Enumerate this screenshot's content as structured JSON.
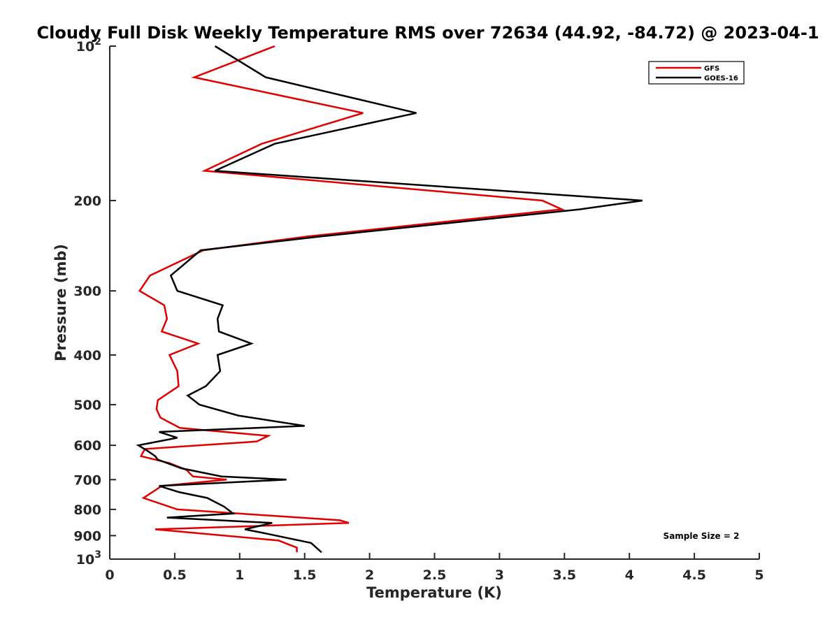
{
  "chart_data": {
    "type": "line",
    "title": "Cloudy Full Disk Weekly Temperature RMS over 72634 (44.92, -84.72) @ 2023-04-1",
    "xlabel": "Temperature (K)",
    "ylabel": "Pressure (mb)",
    "xlim": [
      0,
      5
    ],
    "ylim": [
      1000,
      100
    ],
    "yscale": "log",
    "y_reversed": true,
    "grid": false,
    "legend_position": "top-right",
    "x_ticks": [
      0,
      0.5,
      1,
      1.5,
      2,
      2.5,
      3,
      3.5,
      4,
      4.5,
      5
    ],
    "x_tick_labels": [
      "0",
      "0.5",
      "1",
      "1.5",
      "2",
      "2.5",
      "3",
      "3.5",
      "4",
      "4.5",
      "5"
    ],
    "y_ticks": [
      100,
      200,
      300,
      400,
      500,
      600,
      700,
      800,
      900,
      1000
    ],
    "y_tick_labels": [
      {
        "base": "10",
        "exp": "2"
      },
      {
        "base": "200",
        "exp": ""
      },
      {
        "base": "300",
        "exp": ""
      },
      {
        "base": "400",
        "exp": ""
      },
      {
        "base": "500",
        "exp": ""
      },
      {
        "base": "600",
        "exp": ""
      },
      {
        "base": "700",
        "exp": ""
      },
      {
        "base": "800",
        "exp": ""
      },
      {
        "base": "900",
        "exp": ""
      },
      {
        "base": "10",
        "exp": "3"
      }
    ],
    "annotation": "Sample Size = 2",
    "series": [
      {
        "name": "GFS",
        "color": "#e00000",
        "points": [
          [
            1.27,
            100
          ],
          [
            0.65,
            115
          ],
          [
            1.95,
            135
          ],
          [
            1.17,
            155
          ],
          [
            0.73,
            175
          ],
          [
            3.33,
            200
          ],
          [
            3.48,
            208
          ],
          [
            1.52,
            235
          ],
          [
            0.72,
            250
          ],
          [
            0.31,
            280
          ],
          [
            0.23,
            300
          ],
          [
            0.42,
            320
          ],
          [
            0.44,
            340
          ],
          [
            0.4,
            360
          ],
          [
            0.68,
            380
          ],
          [
            0.46,
            400
          ],
          [
            0.52,
            430
          ],
          [
            0.53,
            460
          ],
          [
            0.37,
            490
          ],
          [
            0.36,
            510
          ],
          [
            0.39,
            530
          ],
          [
            0.54,
            555
          ],
          [
            1.22,
            575
          ],
          [
            1.13,
            590
          ],
          [
            0.27,
            610
          ],
          [
            0.24,
            630
          ],
          [
            0.46,
            650
          ],
          [
            0.59,
            670
          ],
          [
            0.64,
            690
          ],
          [
            0.9,
            700
          ],
          [
            0.4,
            720
          ],
          [
            0.26,
            760
          ],
          [
            0.52,
            800
          ],
          [
            1.77,
            840
          ],
          [
            1.84,
            850
          ],
          [
            0.35,
            875
          ],
          [
            1.3,
            920
          ],
          [
            1.44,
            950
          ],
          [
            1.44,
            970
          ]
        ]
      },
      {
        "name": "GOES-16",
        "color": "#000000",
        "points": [
          [
            0.81,
            100
          ],
          [
            1.2,
            115
          ],
          [
            2.36,
            135
          ],
          [
            1.27,
            155
          ],
          [
            0.81,
            175
          ],
          [
            4.1,
            200
          ],
          [
            3.62,
            208
          ],
          [
            1.62,
            235
          ],
          [
            0.7,
            250
          ],
          [
            0.47,
            280
          ],
          [
            0.52,
            300
          ],
          [
            0.87,
            320
          ],
          [
            0.83,
            340
          ],
          [
            0.84,
            360
          ],
          [
            1.09,
            380
          ],
          [
            0.83,
            400
          ],
          [
            0.85,
            430
          ],
          [
            0.74,
            460
          ],
          [
            0.6,
            480
          ],
          [
            0.69,
            500
          ],
          [
            0.99,
            525
          ],
          [
            1.5,
            550
          ],
          [
            0.38,
            565
          ],
          [
            0.52,
            580
          ],
          [
            0.22,
            600
          ],
          [
            0.29,
            615
          ],
          [
            0.35,
            630
          ],
          [
            0.37,
            640
          ],
          [
            0.55,
            665
          ],
          [
            0.86,
            690
          ],
          [
            1.36,
            700
          ],
          [
            0.38,
            720
          ],
          [
            0.53,
            740
          ],
          [
            0.75,
            760
          ],
          [
            0.88,
            790
          ],
          [
            0.95,
            815
          ],
          [
            0.44,
            830
          ],
          [
            1.25,
            850
          ],
          [
            1.04,
            875
          ],
          [
            1.19,
            890
          ],
          [
            1.55,
            930
          ],
          [
            1.63,
            970
          ]
        ]
      }
    ]
  }
}
